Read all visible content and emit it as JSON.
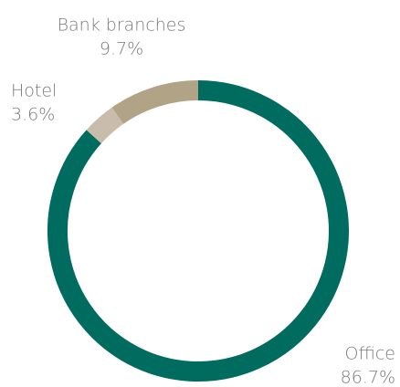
{
  "chart_data": {
    "type": "donut",
    "categories": [
      "Office",
      "Hotel",
      "Bank branches"
    ],
    "values": [
      86.7,
      3.6,
      9.7
    ],
    "value_labels": [
      "86.7%",
      "3.6%",
      "9.7%"
    ],
    "colors": [
      "#006b5f",
      "#c9bcab",
      "#b1a385"
    ]
  }
}
